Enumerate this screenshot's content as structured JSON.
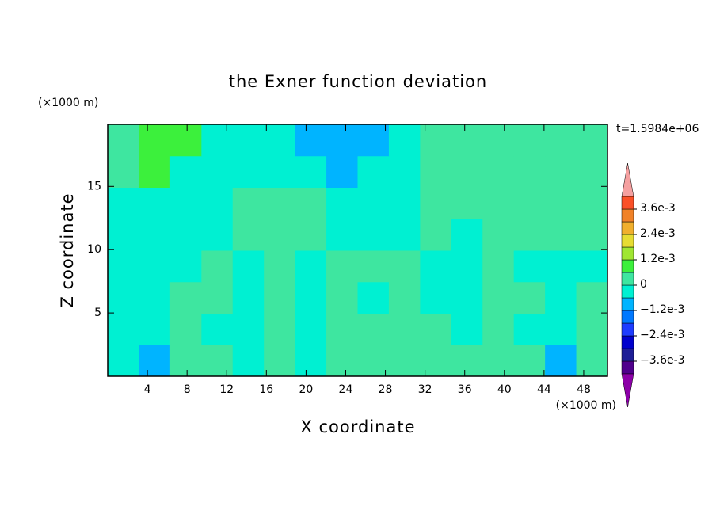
{
  "chart_data": {
    "type": "contour",
    "title": "the Exner function deviation",
    "xlabel": "X coordinate",
    "ylabel": "Z coordinate",
    "xunit": "(×1000 m)",
    "yunit": "(×1000 m)",
    "time_label": "t=1.5984e+06",
    "xlim": [
      0,
      50.4
    ],
    "ylim": [
      0,
      19.9
    ],
    "xticks": [
      4,
      8,
      12,
      16,
      20,
      24,
      28,
      32,
      36,
      40,
      44,
      48
    ],
    "yticks": [
      5,
      10,
      15
    ],
    "z": [
      [
        -0.0003,
        -0.0009,
        0.0003,
        0.0003,
        -0.0003,
        0.0003,
        -0.0003,
        0.0003,
        0.0003,
        0.0003,
        0.0003,
        0.0003,
        0.0003,
        0.0003,
        -0.0009,
        0.0003
      ],
      [
        -0.0003,
        -0.0003,
        0.0003,
        -0.0003,
        -0.0003,
        0.0003,
        -0.0003,
        0.0003,
        0.0003,
        0.0003,
        0.0003,
        -0.0003,
        0.0003,
        -0.0003,
        -0.0003,
        0.0003
      ],
      [
        -0.0003,
        -0.0003,
        0.0003,
        0.0003,
        -0.0003,
        0.0003,
        -0.0003,
        0.0003,
        -0.0003,
        0.0003,
        -0.0003,
        -0.0003,
        0.0003,
        0.0003,
        -0.0003,
        0.0003
      ],
      [
        -0.0003,
        -0.0003,
        -0.0003,
        0.0003,
        -0.0003,
        0.0003,
        -0.0003,
        0.0003,
        0.0003,
        0.0003,
        -0.0003,
        -0.0003,
        0.0003,
        -0.0003,
        -0.0003,
        -0.0003
      ],
      [
        -0.0003,
        -0.0003,
        -0.0003,
        -0.0003,
        0.0003,
        0.0003,
        0.0003,
        -0.0003,
        -0.0003,
        -0.0003,
        0.0003,
        -0.0003,
        0.0003,
        0.0003,
        0.0003,
        0.0003
      ],
      [
        -0.0003,
        -0.0003,
        -0.0003,
        -0.0003,
        0.0003,
        0.0003,
        0.0003,
        -0.0003,
        -0.0003,
        -0.0003,
        0.0003,
        0.0003,
        0.0003,
        0.0003,
        0.0003,
        0.0003
      ],
      [
        0.0003,
        0.0009,
        -0.0003,
        -0.0003,
        -0.0003,
        -0.0003,
        -0.0003,
        -0.0009,
        -0.0003,
        -0.0003,
        0.0003,
        0.0003,
        0.0003,
        0.0003,
        0.0003,
        0.0003
      ],
      [
        0.0003,
        0.0009,
        0.0009,
        -0.0003,
        -0.0003,
        -0.0003,
        -0.0009,
        -0.0009,
        -0.0009,
        -0.0003,
        0.0003,
        0.0003,
        0.0003,
        0.0003,
        0.0003,
        0.0003
      ]
    ],
    "levels": [
      -0.0042,
      -0.0036,
      -0.003,
      -0.0024,
      -0.0018,
      -0.0012,
      -0.0006,
      0,
      0.0006,
      0.0012,
      0.0018,
      0.0024,
      0.003,
      0.0036,
      0.0042
    ],
    "colors": [
      "#8c00a8",
      "#50008c",
      "#1e1e96",
      "#0000cd",
      "#1e3cff",
      "#0078ff",
      "#00b4ff",
      "#00f0d2",
      "#3ee6a0",
      "#3cf03c",
      "#a0e632",
      "#e6dc32",
      "#f0af2d",
      "#f08228",
      "#fa5028",
      "#f01e1e",
      "#f5a0a0"
    ],
    "cbar_ticks": [
      {
        "value": 0.0036,
        "label": "3.6e-3"
      },
      {
        "value": 0.0024,
        "label": "2.4e-3"
      },
      {
        "value": 0.0012,
        "label": "1.2e-3"
      },
      0,
      {
        "value": -0.0012,
        "label": "−1.2e-3"
      },
      {
        "value": -0.0024,
        "label": "−2.4e-3"
      },
      {
        "value": -0.0036,
        "label": "−3.6e-3"
      }
    ]
  }
}
